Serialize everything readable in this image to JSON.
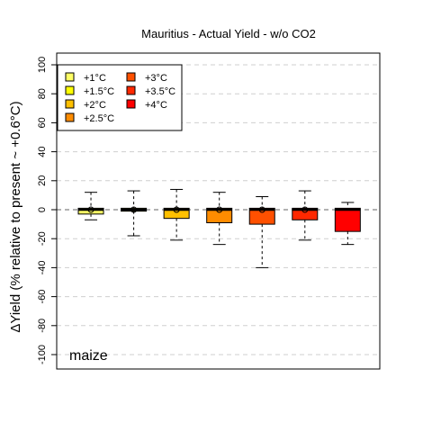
{
  "chart_data": {
    "type": "box",
    "title": "Mauritius - Actual Yield - w/o CO2",
    "ylabel": "ΔYield (% relative to present ~ +0.6°C)",
    "xlabel": "",
    "ylim": [
      -100,
      100
    ],
    "yticks": [
      -100,
      -80,
      -60,
      -40,
      -20,
      0,
      20,
      40,
      60,
      80,
      100
    ],
    "grid": "horizontal dashed",
    "legend_position": "top-left",
    "annotation": "maize",
    "series": [
      {
        "name": "+1°C",
        "color": "#FFFF66",
        "whisker_low": -7,
        "q1": -3,
        "median": 0,
        "q3": 1,
        "whisker_high": 12,
        "mean": 0
      },
      {
        "name": "+1.5°C",
        "color": "#FFFF00",
        "whisker_low": -18,
        "q1": -1,
        "median": 0,
        "q3": 1,
        "whisker_high": 13,
        "mean": 0
      },
      {
        "name": "+2°C",
        "color": "#FFC000",
        "whisker_low": -21,
        "q1": -6,
        "median": 0,
        "q3": 1,
        "whisker_high": 14,
        "mean": 0
      },
      {
        "name": "+2.5°C",
        "color": "#FF8C00",
        "whisker_low": -24,
        "q1": -9,
        "median": 0,
        "q3": 1,
        "whisker_high": 12,
        "mean": 0
      },
      {
        "name": "+3°C",
        "color": "#FF5000",
        "whisker_low": -40,
        "q1": -10,
        "median": 0,
        "q3": 1,
        "whisker_high": 9,
        "mean": 0
      },
      {
        "name": "+3.5°C",
        "color": "#FF2800",
        "whisker_low": -21,
        "q1": -7,
        "median": 0,
        "q3": 1,
        "whisker_high": 13,
        "mean": 0
      },
      {
        "name": "+4°C",
        "color": "#FF0000",
        "whisker_low": -24,
        "q1": -15,
        "median": 0,
        "q3": 1,
        "whisker_high": 5,
        "mean": null
      }
    ]
  }
}
